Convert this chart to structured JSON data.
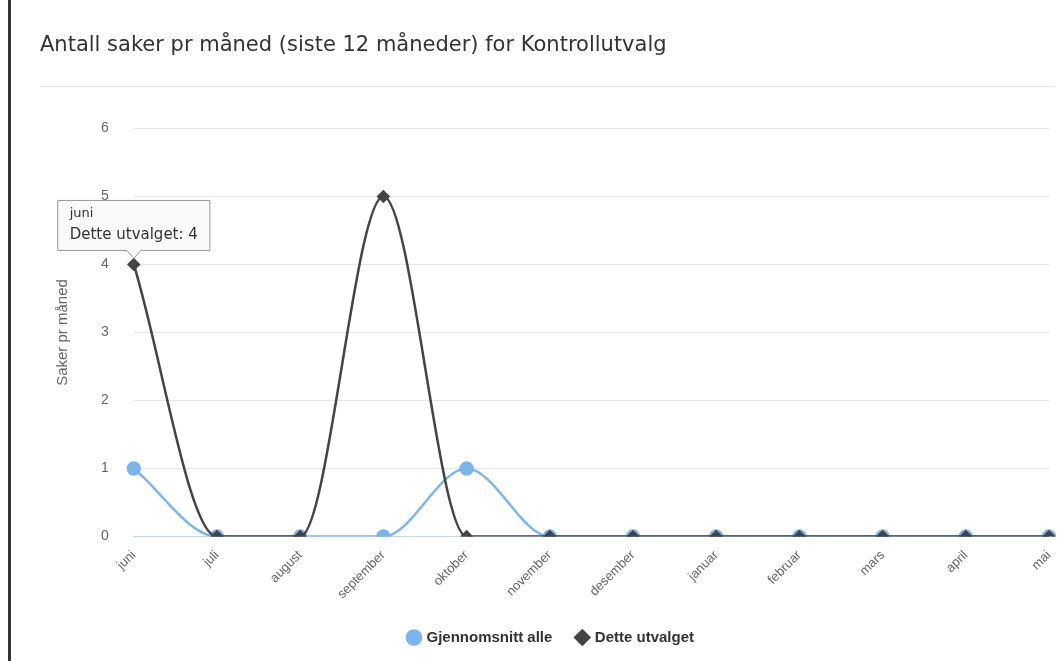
{
  "chart_data": {
    "type": "line",
    "title": "Antall saker pr måned (siste 12 måneder) for Kontrollutvalg",
    "ylabel": "Saker pr måned",
    "categories": [
      "juni",
      "juli",
      "august",
      "september",
      "oktober",
      "november",
      "desember",
      "januar",
      "februar",
      "mars",
      "april",
      "mai"
    ],
    "series": [
      {
        "name": "Gjennomsnitt alle",
        "color": "#7cb5ec",
        "marker": "circle",
        "values": [
          1,
          0,
          0,
          0,
          1,
          0,
          0,
          0,
          0,
          0,
          0,
          0
        ]
      },
      {
        "name": "Dette utvalget",
        "color": "#434348",
        "marker": "diamond",
        "values": [
          4,
          0,
          0,
          5,
          0,
          0,
          0,
          0,
          0,
          0,
          0,
          0
        ]
      }
    ],
    "ylim": [
      0,
      6
    ],
    "yticks": [
      0,
      1,
      2,
      3,
      4,
      5,
      6
    ],
    "grid": "y",
    "legend": "bottom",
    "annotations": [
      {
        "text": "juni\nDette utvalget: 4",
        "x": "juni",
        "y": 4
      }
    ]
  }
}
